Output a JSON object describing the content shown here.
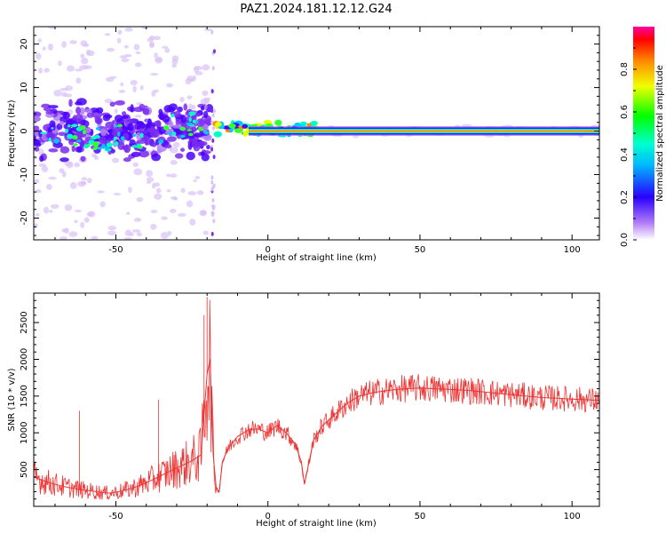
{
  "figure": {
    "title": "PAZ1.2024.181.12.12.G24"
  },
  "chart_data": [
    {
      "type": "heatmap",
      "title": "",
      "xlabel": "Height of straight line (km)",
      "ylabel": "Frequency (Hz)",
      "xlim": [
        -77,
        109
      ],
      "ylim": [
        -25,
        24
      ],
      "xticks": [
        -50,
        0,
        50,
        100
      ],
      "yticks": [
        -20,
        -10,
        0,
        10,
        20
      ],
      "grid": false,
      "colorbar": {
        "label": "Normalized spectral amplitude",
        "range": [
          0,
          1
        ],
        "ticks": [
          "0.0",
          "0.2",
          "0.4",
          "0.6",
          "0.8"
        ]
      },
      "description_series": [
        {
          "x_range": [
            -77,
            -20
          ],
          "freq_spread_hz": [
            -6,
            6
          ],
          "amplitude": [
            0.1,
            0.35
          ]
        },
        {
          "x_range": [
            -34,
            -20
          ],
          "freq_center_hz": 2,
          "amplitude": [
            0.2,
            0.45
          ]
        },
        {
          "x_range": [
            -17,
            15
          ],
          "freq_center_hz": 0.5,
          "amplitude": [
            0.4,
            0.8
          ]
        },
        {
          "x_range": [
            -5,
            109
          ],
          "freq_center_hz": 0,
          "amplitude": [
            0.5,
            0.95
          ]
        }
      ]
    },
    {
      "type": "line",
      "title": "",
      "xlabel": "Height of straight line (km)",
      "ylabel": "SNR (10 * v/v)",
      "xlim": [
        -77,
        109
      ],
      "ylim": [
        0,
        2900
      ],
      "xticks": [
        -50,
        0,
        50,
        100
      ],
      "yticks": [
        500,
        1000,
        1500,
        2000,
        2500
      ],
      "grid": false,
      "series": [
        {
          "color": "#ee3333",
          "x": [
            -77,
            -74,
            -70,
            -66,
            -62,
            -58,
            -55,
            -52,
            -49,
            -46,
            -43,
            -40,
            -37,
            -34,
            -31,
            -28,
            -25,
            -22,
            -20,
            -19,
            -18,
            -17,
            -16,
            -15,
            -13,
            -10,
            -6,
            -3,
            0,
            3,
            6,
            9,
            11,
            12,
            15,
            18,
            22,
            26,
            30,
            35,
            40,
            45,
            50,
            55,
            60,
            65,
            70,
            75,
            80,
            85,
            90,
            95,
            100,
            105,
            109
          ],
          "y": [
            400,
            350,
            300,
            260,
            230,
            210,
            190,
            180,
            200,
            230,
            270,
            320,
            380,
            440,
            500,
            560,
            620,
            700,
            1800,
            2000,
            700,
            250,
            200,
            600,
            800,
            950,
            1050,
            1050,
            1000,
            1100,
            1000,
            850,
            600,
            300,
            900,
            1100,
            1250,
            1400,
            1500,
            1550,
            1580,
            1600,
            1610,
            1600,
            1590,
            1580,
            1560,
            1540,
            1520,
            1500,
            1480,
            1470,
            1460,
            1450,
            1440
          ]
        }
      ],
      "peaks": [
        {
          "x": -20,
          "y": 2850
        },
        {
          "x": -21,
          "y": 2600
        },
        {
          "x": -36,
          "y": 1450
        },
        {
          "x": -62,
          "y": 1300
        }
      ]
    }
  ]
}
